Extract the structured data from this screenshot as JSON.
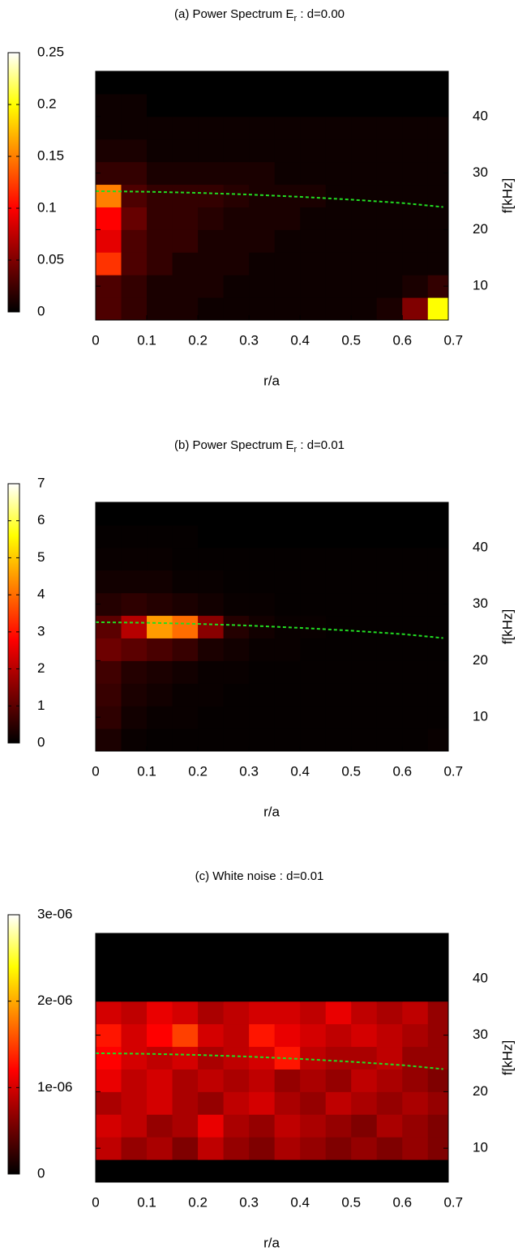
{
  "chart_data": [
    {
      "type": "heatmap",
      "title": [
        "(a) Power Spectrum E",
        "r",
        " : d=0.00"
      ],
      "xlabel": "r/a",
      "ylabel": "f[kHz]",
      "xlim": [
        0,
        0.69
      ],
      "xticks": [
        0,
        0.1,
        0.2,
        0.3,
        0.4,
        0.5,
        0.6,
        0.7
      ],
      "ylim": [
        4,
        48
      ],
      "yticks": [
        10,
        20,
        30,
        40
      ],
      "clim": [
        0,
        0.25
      ],
      "cticks": [
        0,
        0.05,
        0.1,
        0.15,
        0.2,
        0.25
      ],
      "xbins": [
        0,
        0.05,
        0.1,
        0.15,
        0.2,
        0.25,
        0.3,
        0.35,
        0.4,
        0.45,
        0.5,
        0.55,
        0.6,
        0.65,
        0.69
      ],
      "ybins": [
        4,
        8,
        12,
        16,
        20,
        24,
        28,
        32,
        36,
        40,
        44,
        48
      ],
      "z": [
        [
          0.03,
          0.02,
          0.01,
          0.01,
          0.005,
          0.005,
          0.005,
          0.005,
          0.005,
          0.005,
          0.005,
          0.01,
          0.05,
          0.2
        ],
        [
          0.03,
          0.02,
          0.01,
          0.01,
          0.01,
          0.005,
          0.005,
          0.005,
          0.005,
          0.005,
          0.005,
          0.005,
          0.01,
          0.02
        ],
        [
          0.12,
          0.03,
          0.02,
          0.01,
          0.01,
          0.01,
          0.005,
          0.005,
          0.005,
          0.005,
          0.005,
          0.005,
          0.005,
          0.005
        ],
        [
          0.09,
          0.03,
          0.02,
          0.02,
          0.01,
          0.01,
          0.01,
          0.005,
          0.005,
          0.005,
          0.005,
          0.005,
          0.005,
          0.005
        ],
        [
          0.1,
          0.04,
          0.02,
          0.02,
          0.015,
          0.01,
          0.01,
          0.01,
          0.005,
          0.005,
          0.005,
          0.005,
          0.005,
          0.005
        ],
        [
          0.15,
          0.03,
          0.02,
          0.02,
          0.02,
          0.015,
          0.01,
          0.01,
          0.01,
          0.005,
          0.005,
          0.005,
          0.005,
          0.005
        ],
        [
          0.02,
          0.02,
          0.01,
          0.01,
          0.01,
          0.01,
          0.01,
          0.005,
          0.005,
          0.005,
          0.005,
          0.005,
          0.005,
          0.005
        ],
        [
          0.01,
          0.01,
          0.005,
          0.005,
          0.005,
          0.005,
          0.005,
          0.005,
          0.005,
          0.005,
          0.005,
          0.005,
          0.005,
          0.005
        ],
        [
          0.005,
          0.005,
          0.005,
          0.005,
          0.005,
          0.005,
          0.005,
          0.005,
          0.005,
          0.005,
          0.005,
          0.005,
          0.005,
          0.005
        ],
        [
          0.005,
          0.005,
          0,
          0,
          0,
          0,
          0,
          0,
          0,
          0,
          0,
          0,
          0,
          0
        ],
        [
          0,
          0,
          0,
          0,
          0,
          0,
          0,
          0,
          0,
          0,
          0,
          0,
          0,
          0
        ]
      ],
      "curve": {
        "color": "#22dd22",
        "x": [
          0,
          0.1,
          0.2,
          0.3,
          0.4,
          0.5,
          0.6,
          0.68
        ],
        "values": [
          26.8,
          26.7,
          26.5,
          26.2,
          25.8,
          25.3,
          24.7,
          24.0
        ]
      }
    },
    {
      "type": "heatmap",
      "title": [
        "(b) Power Spectrum E",
        "r",
        " : d=0.01"
      ],
      "xlabel": "r/a",
      "ylabel": "f[kHz]",
      "xlim": [
        0,
        0.69
      ],
      "xticks": [
        0,
        0.1,
        0.2,
        0.3,
        0.4,
        0.5,
        0.6,
        0.7
      ],
      "ylim": [
        4,
        48
      ],
      "yticks": [
        10,
        20,
        30,
        40
      ],
      "clim": [
        0,
        7
      ],
      "cticks": [
        0,
        1,
        2,
        3,
        4,
        5,
        6,
        7
      ],
      "xbins": [
        0,
        0.05,
        0.1,
        0.15,
        0.2,
        0.25,
        0.3,
        0.35,
        0.4,
        0.45,
        0.5,
        0.55,
        0.6,
        0.65,
        0.69
      ],
      "ybins": [
        4,
        8,
        12,
        16,
        20,
        24,
        28,
        32,
        36,
        40,
        44,
        48
      ],
      "z": [
        [
          0.3,
          0.1,
          0.05,
          0.05,
          0.05,
          0.05,
          0.05,
          0.05,
          0.05,
          0.05,
          0.05,
          0.05,
          0.05,
          0.1
        ],
        [
          0.5,
          0.2,
          0.1,
          0.1,
          0.05,
          0.05,
          0.05,
          0.05,
          0.05,
          0.05,
          0.05,
          0.05,
          0.05,
          0.05
        ],
        [
          0.6,
          0.3,
          0.2,
          0.1,
          0.1,
          0.05,
          0.05,
          0.05,
          0.05,
          0.05,
          0.05,
          0.05,
          0.05,
          0.05
        ],
        [
          0.7,
          0.4,
          0.3,
          0.2,
          0.1,
          0.1,
          0.05,
          0.05,
          0.05,
          0.05,
          0.05,
          0.05,
          0.05,
          0.05
        ],
        [
          1.2,
          1,
          0.8,
          0.6,
          0.3,
          0.2,
          0.1,
          0.1,
          0.05,
          0.05,
          0.05,
          0.05,
          0.05,
          0.05
        ],
        [
          1,
          2,
          4.5,
          4,
          1.5,
          0.4,
          0.2,
          0.1,
          0.1,
          0.05,
          0.05,
          0.05,
          0.05,
          0.05
        ],
        [
          0.4,
          0.5,
          0.4,
          0.3,
          0.2,
          0.1,
          0.1,
          0.05,
          0.05,
          0.05,
          0.05,
          0.05,
          0.05,
          0.05
        ],
        [
          0.2,
          0.2,
          0.2,
          0.1,
          0.1,
          0.05,
          0.05,
          0.05,
          0.05,
          0.05,
          0.05,
          0.05,
          0.05,
          0.05
        ],
        [
          0.1,
          0.1,
          0.1,
          0.05,
          0.05,
          0.05,
          0.05,
          0.05,
          0.05,
          0.05,
          0.05,
          0.05,
          0.05,
          0.05
        ],
        [
          0.05,
          0.05,
          0.05,
          0.05,
          0,
          0,
          0,
          0,
          0,
          0,
          0,
          0,
          0,
          0
        ],
        [
          0,
          0,
          0,
          0,
          0,
          0,
          0,
          0,
          0,
          0,
          0,
          0,
          0,
          0
        ]
      ],
      "curve": {
        "color": "#22dd22",
        "x": [
          0,
          0.1,
          0.2,
          0.3,
          0.4,
          0.5,
          0.6,
          0.68
        ],
        "values": [
          26.8,
          26.7,
          26.5,
          26.2,
          25.8,
          25.3,
          24.7,
          24.0
        ]
      }
    },
    {
      "type": "heatmap",
      "title": [
        "(c) White noise : d=0.01"
      ],
      "xlabel": "r/a",
      "ylabel": "f[kHz]",
      "xlim": [
        0,
        0.69
      ],
      "xticks": [
        0,
        0.1,
        0.2,
        0.3,
        0.4,
        0.5,
        0.6,
        0.7
      ],
      "ylim": [
        4,
        48
      ],
      "yticks": [
        10,
        20,
        30,
        40
      ],
      "clim": [
        0,
        3e-06
      ],
      "cticks": [
        0,
        {
          "value": 1e-06,
          "label": "1e-06"
        },
        {
          "value": 2e-06,
          "label": "2e-06"
        },
        {
          "value": 3e-06,
          "label": "3e-06"
        }
      ],
      "xbins": [
        0,
        0.05,
        0.1,
        0.15,
        0.2,
        0.25,
        0.3,
        0.35,
        0.4,
        0.45,
        0.5,
        0.55,
        0.6,
        0.65,
        0.69
      ],
      "ybins": [
        4,
        8,
        12,
        16,
        20,
        24,
        28,
        32,
        36,
        40,
        44,
        48
      ],
      "z": [
        [
          0,
          0,
          0,
          0,
          0,
          0,
          0,
          0,
          0,
          0,
          0,
          0,
          0,
          0
        ],
        [
          9e-07,
          7e-07,
          8e-07,
          6e-07,
          9e-07,
          7e-07,
          6e-07,
          8e-07,
          7e-07,
          6e-07,
          7e-07,
          6e-07,
          7e-07,
          6e-07
        ],
        [
          1e-06,
          9e-07,
          7e-07,
          8e-07,
          1.1e-06,
          8e-07,
          7e-07,
          9e-07,
          8e-07,
          7e-07,
          6e-07,
          8e-07,
          7e-07,
          6e-07
        ],
        [
          8e-07,
          9e-07,
          1e-06,
          8e-07,
          7e-07,
          9e-07,
          1e-06,
          8e-07,
          7e-07,
          9e-07,
          8e-07,
          7e-07,
          8e-07,
          7e-07
        ],
        [
          1.1e-06,
          9e-07,
          1e-06,
          8e-07,
          9e-07,
          8e-07,
          9e-07,
          7e-07,
          8e-07,
          7e-07,
          9e-07,
          8e-07,
          7e-07,
          6e-07
        ],
        [
          1.2e-06,
          1e-06,
          9e-07,
          1e-06,
          8e-07,
          9e-07,
          1e-06,
          1.3e-06,
          9e-07,
          8e-07,
          8e-07,
          9e-07,
          7e-07,
          7e-07
        ],
        [
          1.3e-06,
          1e-06,
          1.2e-06,
          1.5e-06,
          1e-06,
          9e-07,
          1.3e-06,
          1.1e-06,
          1e-06,
          9e-07,
          1e-06,
          9e-07,
          8e-07,
          7e-07
        ],
        [
          1e-06,
          9e-07,
          1.1e-06,
          1e-06,
          8e-07,
          9e-07,
          1e-06,
          1e-06,
          9e-07,
          1.1e-06,
          9e-07,
          8e-07,
          9e-07,
          7e-07
        ],
        [
          0,
          0,
          0,
          0,
          0,
          0,
          0,
          0,
          0,
          0,
          0,
          0,
          0,
          0
        ],
        [
          0,
          0,
          0,
          0,
          0,
          0,
          0,
          0,
          0,
          0,
          0,
          0,
          0,
          0
        ],
        [
          0,
          0,
          0,
          0,
          0,
          0,
          0,
          0,
          0,
          0,
          0,
          0,
          0,
          0
        ]
      ],
      "curve": {
        "color": "#22dd22",
        "x": [
          0,
          0.1,
          0.2,
          0.3,
          0.4,
          0.5,
          0.6,
          0.68
        ],
        "values": [
          26.8,
          26.7,
          26.5,
          26.2,
          25.8,
          25.3,
          24.7,
          24.0
        ]
      }
    }
  ]
}
